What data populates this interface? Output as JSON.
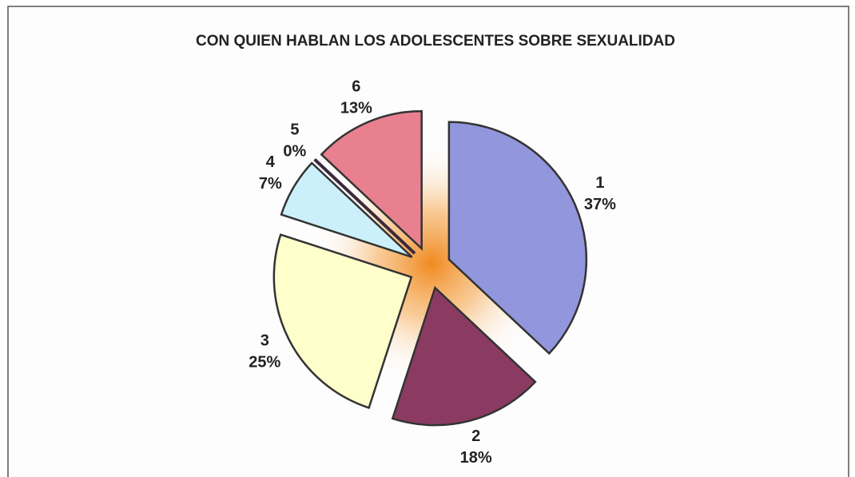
{
  "chart_data": {
    "type": "pie",
    "title": "CON QUIEN HABLAN LOS ADOLESCENTES SOBRE SEXUALIDAD",
    "categories": [
      "1",
      "2",
      "3",
      "4",
      "5",
      "6"
    ],
    "values": [
      37,
      18,
      25,
      7,
      0,
      13
    ],
    "value_labels": [
      "37%",
      "18%",
      "25%",
      "7%",
      "0%",
      "13%"
    ],
    "colors": [
      "#9296dc",
      "#8b3b62",
      "#ffffcc",
      "#ccf0fb",
      "#3a2a3a",
      "#e9808f"
    ]
  }
}
